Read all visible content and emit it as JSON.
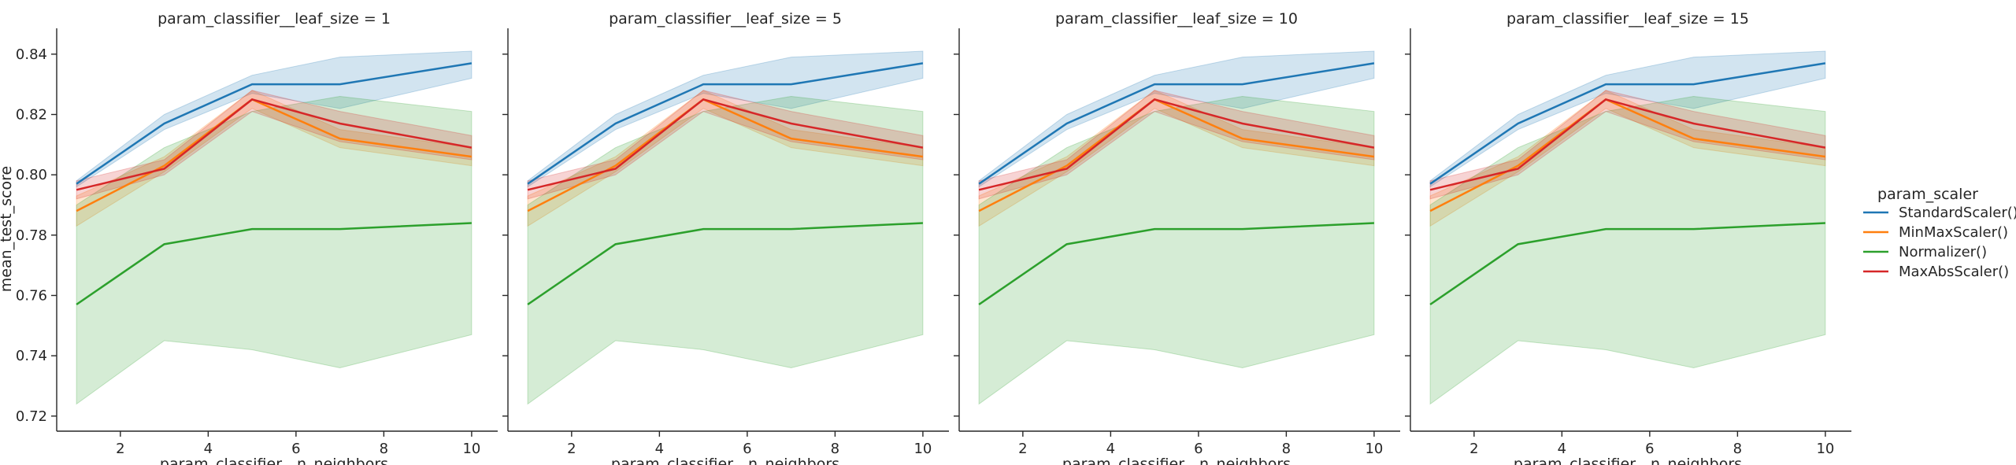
{
  "chart_data": {
    "type": "line",
    "ylabel": "mean_test_score",
    "xlabel": "param_classifier__n_neighbors",
    "ylim": [
      0.715,
      0.847
    ],
    "xlim": [
      0.55,
      10.45
    ],
    "yticks": [
      0.72,
      0.74,
      0.76,
      0.78,
      0.8,
      0.82,
      0.84
    ],
    "xticks": [
      2,
      4,
      6,
      8,
      10
    ],
    "grid": false,
    "legend": {
      "title": "param_scaler",
      "placement": "right",
      "entries": [
        "StandardScaler()",
        "MinMaxScaler()",
        "Normalizer()",
        "MaxAbsScaler()"
      ]
    },
    "panels": [
      {
        "title": "param_classifier__leaf_size = 1"
      },
      {
        "title": "param_classifier__leaf_size = 5"
      },
      {
        "title": "param_classifier__leaf_size = 10"
      },
      {
        "title": "param_classifier__leaf_size = 15"
      }
    ],
    "x": [
      1,
      3,
      5,
      7,
      10
    ],
    "series": [
      {
        "name": "StandardScaler()",
        "color": "#1f77b4",
        "values": [
          0.797,
          0.817,
          0.83,
          0.83,
          0.837
        ],
        "lower": [
          0.796,
          0.815,
          0.827,
          0.822,
          0.832
        ],
        "upper": [
          0.798,
          0.82,
          0.833,
          0.839,
          0.841
        ]
      },
      {
        "name": "MinMaxScaler()",
        "color": "#ff7f0e",
        "values": [
          0.788,
          0.803,
          0.825,
          0.812,
          0.806
        ],
        "lower": [
          0.783,
          0.801,
          0.822,
          0.809,
          0.803
        ],
        "upper": [
          0.793,
          0.806,
          0.828,
          0.815,
          0.809
        ]
      },
      {
        "name": "Normalizer()",
        "color": "#2ca02c",
        "values": [
          0.757,
          0.777,
          0.782,
          0.782,
          0.784
        ],
        "lower": [
          0.724,
          0.745,
          0.742,
          0.736,
          0.747
        ],
        "upper": [
          0.79,
          0.809,
          0.821,
          0.826,
          0.821
        ]
      },
      {
        "name": "MaxAbsScaler()",
        "color": "#d62728",
        "values": [
          0.795,
          0.802,
          0.825,
          0.817,
          0.809
        ],
        "lower": [
          0.792,
          0.8,
          0.821,
          0.811,
          0.805
        ],
        "upper": [
          0.798,
          0.805,
          0.828,
          0.821,
          0.813
        ]
      }
    ]
  }
}
